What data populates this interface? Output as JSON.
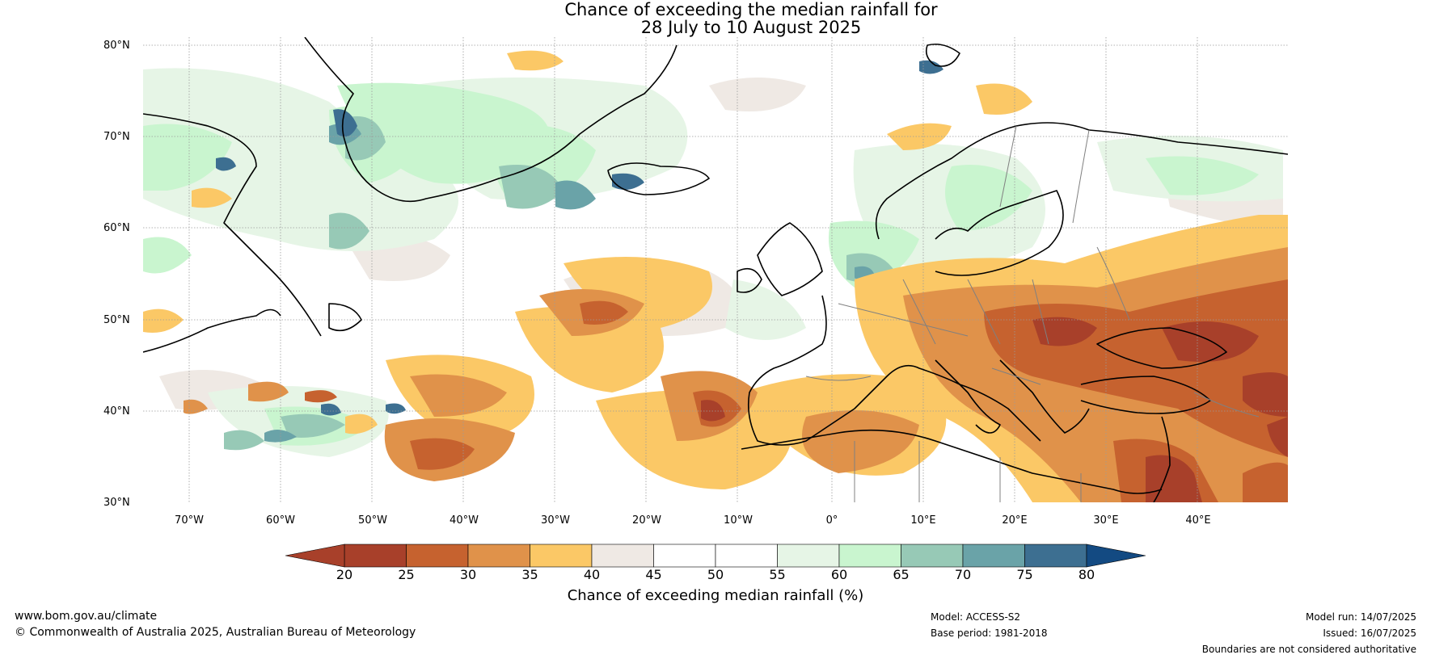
{
  "title": {
    "line1": "Chance of exceeding the median rainfall for",
    "line2": "28 July to 10 August 2025"
  },
  "map": {
    "latitude_labels": [
      "80°N",
      "70°N",
      "60°N",
      "50°N",
      "40°N",
      "30°N"
    ],
    "longitude_labels": [
      "70°W",
      "60°W",
      "50°W",
      "40°W",
      "30°W",
      "20°W",
      "10°W",
      "0°",
      "10°E",
      "20°E",
      "30°E",
      "40°E"
    ],
    "colors": {
      "very_dry": "#a8402a",
      "dry": "#c6622f",
      "moderately_dry": "#e0924a",
      "slightly_dry": "#fbc866",
      "near_median_low": "#efe9e4",
      "neutral": "#ffffff",
      "slightly_wet": "#e6f5e6",
      "wet": "#c9f5cf",
      "moderately_wet": "#97c9b6",
      "very_wet": "#6aa3a8",
      "extremely_wet": "#3d6f91",
      "coastline": "#000000",
      "borders": "#808080",
      "grid": "#9a9a9a"
    }
  },
  "colorbar": {
    "tick_labels": [
      "20",
      "25",
      "30",
      "35",
      "40",
      "45",
      "50",
      "55",
      "60",
      "65",
      "70",
      "75",
      "80"
    ],
    "bins": [
      {
        "from": 20,
        "to": 25,
        "color": "#a8402a"
      },
      {
        "from": 25,
        "to": 30,
        "color": "#c6622f"
      },
      {
        "from": 30,
        "to": 35,
        "color": "#e0924a"
      },
      {
        "from": 35,
        "to": 40,
        "color": "#fbc866"
      },
      {
        "from": 40,
        "to": 45,
        "color": "#efe9e4"
      },
      {
        "from": 45,
        "to": 50,
        "color": "#ffffff"
      },
      {
        "from": 50,
        "to": 55,
        "color": "#ffffff"
      },
      {
        "from": 55,
        "to": 60,
        "color": "#e6f5e6"
      },
      {
        "from": 60,
        "to": 65,
        "color": "#c9f5cf"
      },
      {
        "from": 65,
        "to": 70,
        "color": "#97c9b6"
      },
      {
        "from": 70,
        "to": 75,
        "color": "#6aa3a8"
      },
      {
        "from": 75,
        "to": 80,
        "color": "#3d6f91"
      }
    ],
    "under_color": "#a8402a",
    "over_color": "#134a82",
    "label": "Chance of exceeding median rainfall (%)"
  },
  "footer": {
    "website": "www.bom.gov.au/climate",
    "copyright": "© Commonwealth of Australia 2025, Australian Bureau of Meteorology",
    "model": "Model: ACCESS-S2",
    "base_period": "Base period: 1981-2018",
    "model_run": "Model run: 14/07/2025",
    "issued": "Issued: 16/07/2025",
    "disclaimer": "Boundaries are not considered authoritative"
  }
}
